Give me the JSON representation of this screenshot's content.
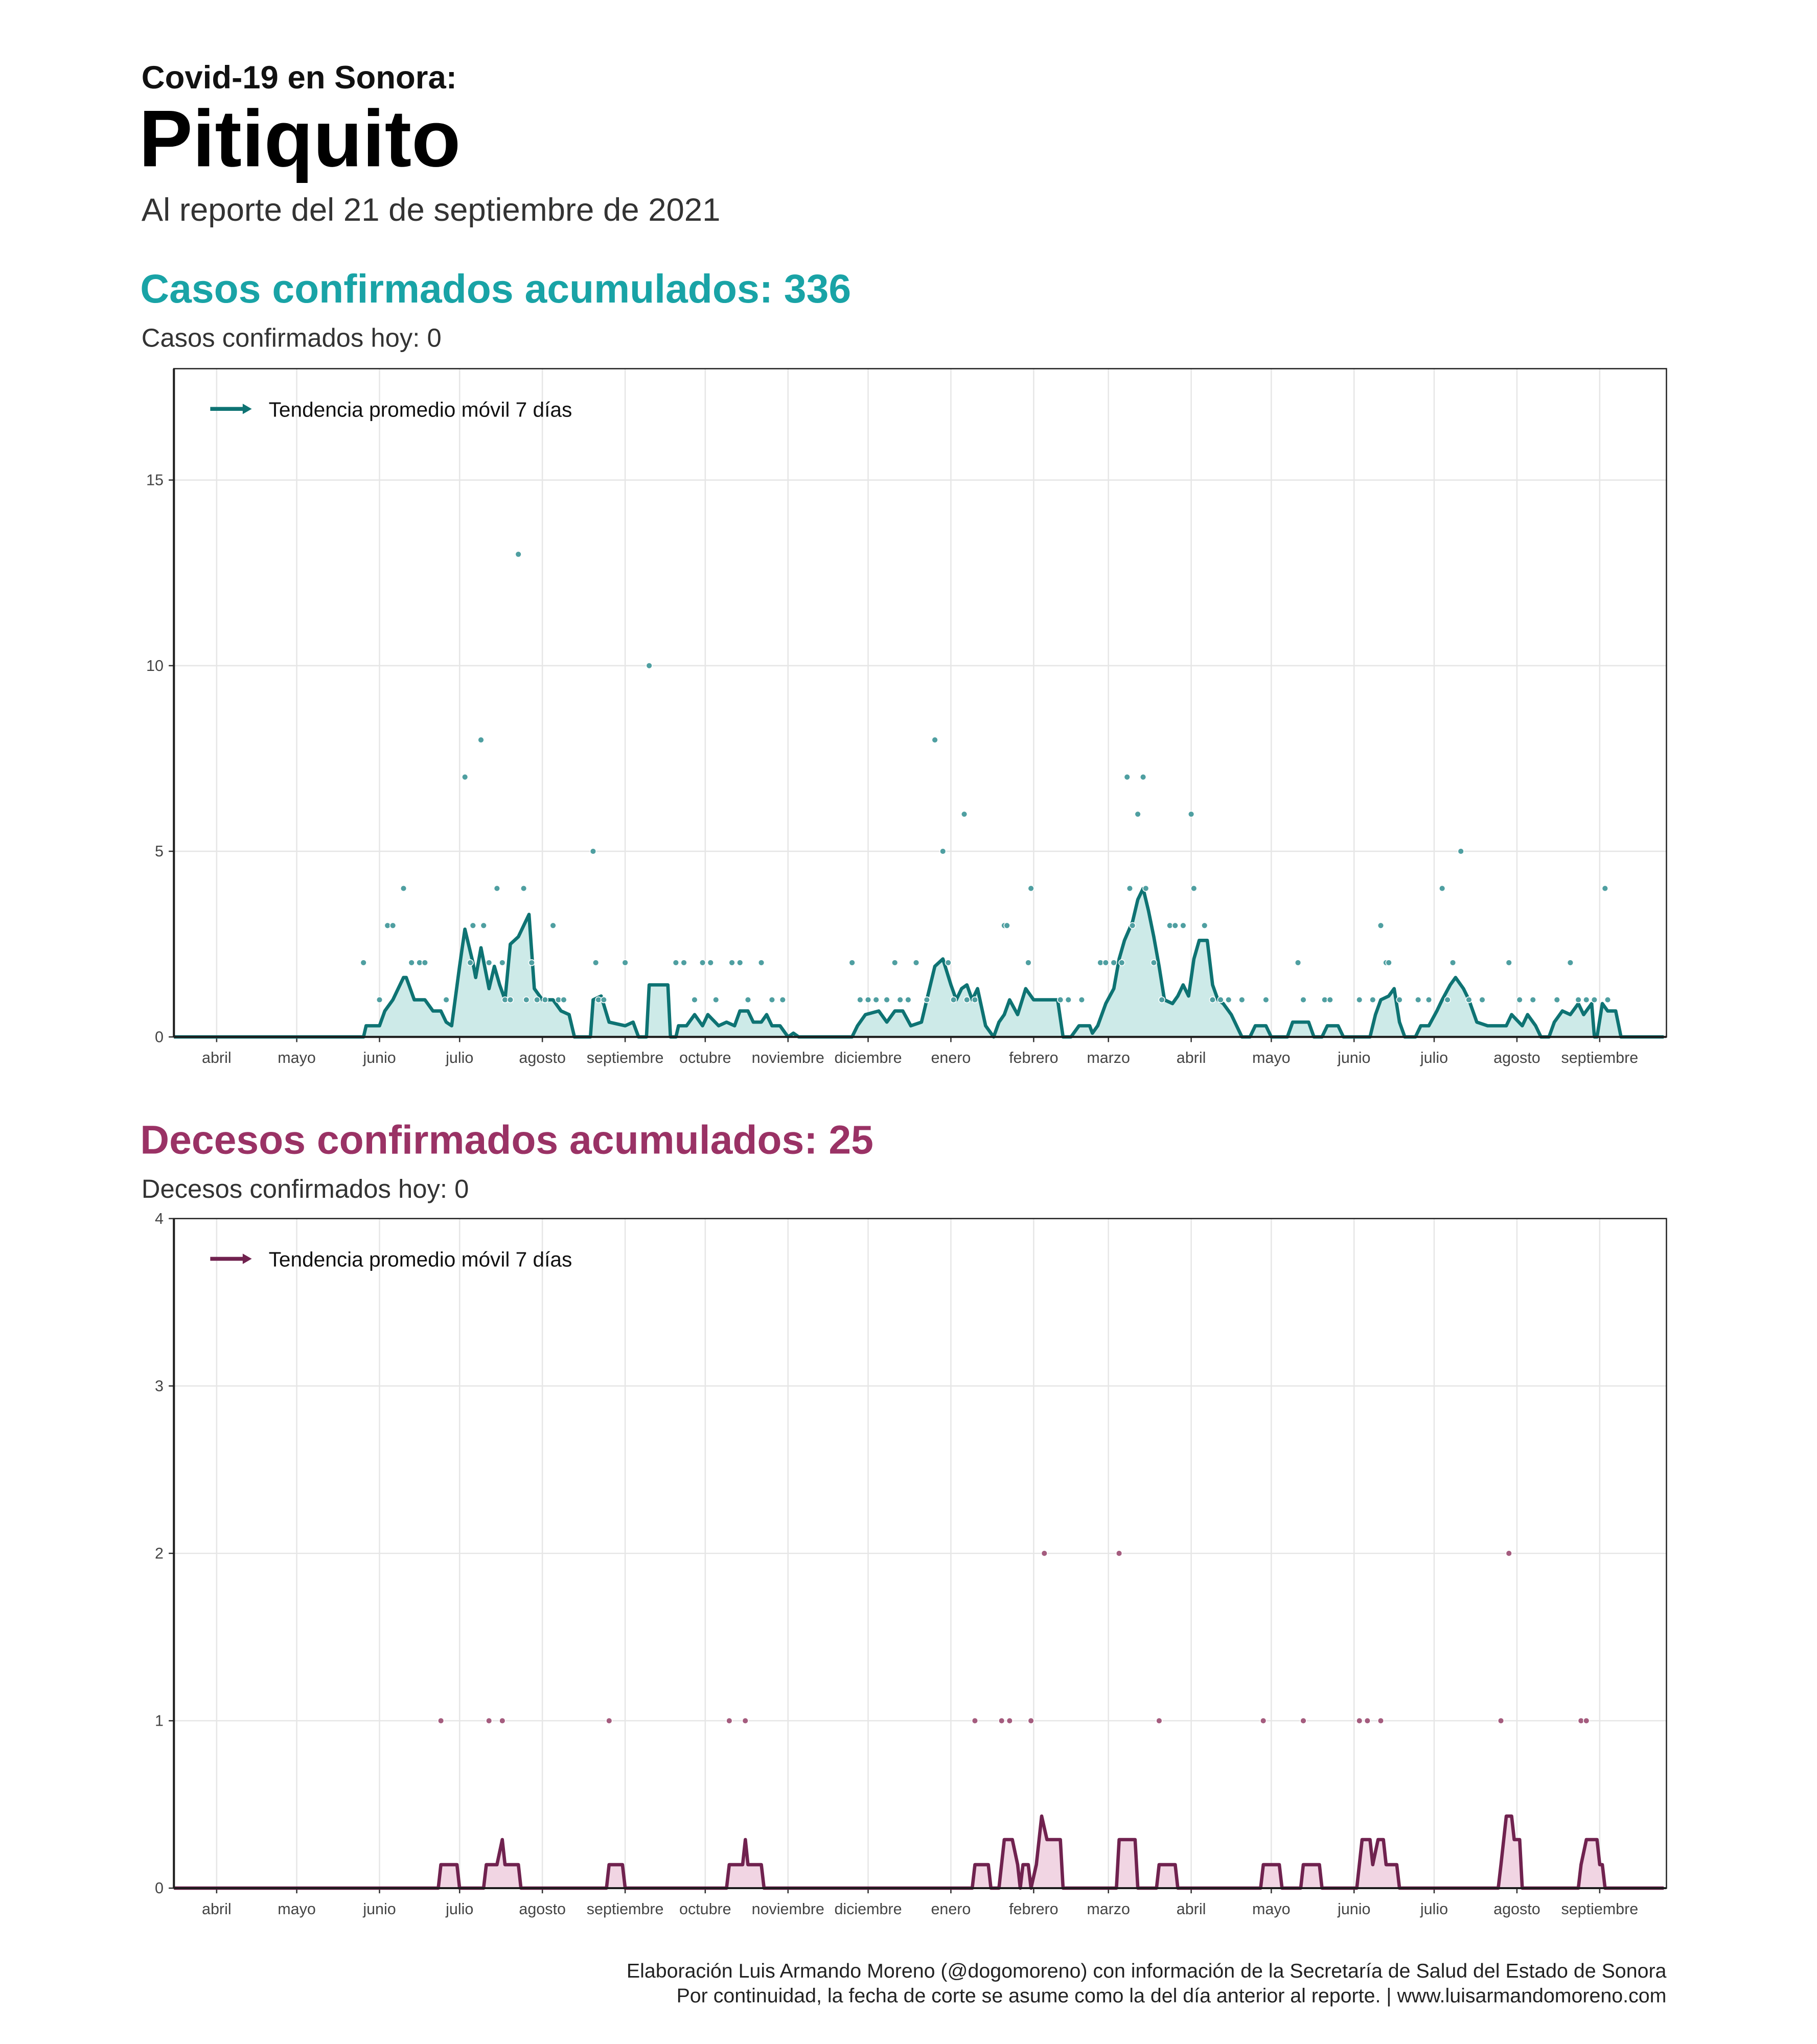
{
  "header": {
    "kicker": "Covid-19 en Sonora:",
    "title": "Pitiquito",
    "subtitle": "Al reporte del 21 de septiembre de 2021"
  },
  "footer": [
    "Elaboración Luis Armando Moreno (@dogomoreno) con información de la Secretaría de Salud del Estado de Sonora",
    "Por continuidad, la fecha de corte se asume como la del día anterior al reporte. | www.luisarmandomoreno.com"
  ],
  "chart_data": [
    {
      "type": "scatter",
      "title": "Casos confirmados acumulados: 336",
      "subtitle": "Casos confirmados hoy: 0",
      "title_color": "#19a3a6",
      "xlim": [
        -2,
        557
      ],
      "ylim": [
        0,
        18
      ],
      "yticks": [
        0,
        5,
        10,
        15
      ],
      "grid": true,
      "legend": "top-left",
      "xticks": [
        {
          "value": 14,
          "label": "abril"
        },
        {
          "value": 44,
          "label": "mayo"
        },
        {
          "value": 75,
          "label": "junio"
        },
        {
          "value": 105,
          "label": "julio"
        },
        {
          "value": 136,
          "label": "agosto"
        },
        {
          "value": 167,
          "label": "septiembre"
        },
        {
          "value": 197,
          "label": "octubre"
        },
        {
          "value": 228,
          "label": "noviembre"
        },
        {
          "value": 258,
          "label": "diciembre"
        },
        {
          "value": 289,
          "label": "enero"
        },
        {
          "value": 320,
          "label": "febrero"
        },
        {
          "value": 348,
          "label": "marzo"
        },
        {
          "value": 379,
          "label": "abril"
        },
        {
          "value": 409,
          "label": "mayo"
        },
        {
          "value": 440,
          "label": "junio"
        },
        {
          "value": 470,
          "label": "julio"
        },
        {
          "value": 501,
          "label": "agosto"
        },
        {
          "value": 532,
          "label": "septiembre"
        }
      ],
      "series": [
        {
          "name": "Tendencia promedio móvil 7 días",
          "kind": "line",
          "color": "#0e7373",
          "fill": "#cdeae8",
          "x": [
            -2,
            69,
            70,
            75,
            77,
            80,
            84,
            85,
            88,
            92,
            95,
            98,
            100,
            102,
            105,
            107,
            110,
            111,
            113,
            116,
            118,
            120,
            122,
            124,
            127,
            129,
            131,
            133,
            136,
            140,
            143,
            146,
            148,
            154,
            155,
            158,
            161,
            167,
            170,
            172,
            175,
            176,
            183,
            184,
            186,
            187,
            190,
            193,
            196,
            198,
            202,
            205,
            208,
            210,
            213,
            215,
            218,
            220,
            222,
            225,
            228,
            230,
            232,
            252,
            254,
            257,
            262,
            265,
            268,
            271,
            274,
            278,
            280,
            283,
            286,
            289,
            291,
            293,
            295,
            297,
            299,
            302,
            305,
            307,
            309,
            311,
            314,
            317,
            320,
            329,
            331,
            334,
            337,
            341,
            342,
            344,
            347,
            350,
            352,
            354,
            357,
            359,
            361,
            363,
            365,
            367,
            369,
            372,
            374,
            376,
            378,
            380,
            382,
            385,
            387,
            389,
            391,
            394,
            396,
            398,
            401,
            403,
            407,
            409,
            415,
            417,
            423,
            425,
            428,
            430,
            434,
            436,
            446,
            448,
            450,
            453,
            455,
            457,
            459,
            463,
            465,
            468,
            471,
            473,
            476,
            478,
            481,
            483,
            486,
            490,
            497,
            499,
            503,
            505,
            508,
            510,
            513,
            515,
            518,
            521,
            524,
            526,
            529,
            530,
            531,
            533,
            535,
            538,
            540,
            556
          ],
          "values": [
            0,
            0,
            0.3,
            0.3,
            0.7,
            1,
            1.6,
            1.6,
            1,
            1,
            0.7,
            0.7,
            0.4,
            0.3,
            1.9,
            2.9,
            2,
            1.6,
            2.4,
            1.3,
            1.9,
            1.4,
            1,
            2.5,
            2.7,
            3,
            3.3,
            1.3,
            1,
            1,
            0.7,
            0.6,
            0,
            0,
            1,
            1.1,
            0.4,
            0.3,
            0.4,
            0,
            0,
            1.4,
            1.4,
            0,
            0,
            0.3,
            0.3,
            0.6,
            0.3,
            0.6,
            0.3,
            0.4,
            0.3,
            0.7,
            0.7,
            0.4,
            0.4,
            0.6,
            0.3,
            0.3,
            0,
            0.1,
            0,
            0,
            0.3,
            0.6,
            0.7,
            0.4,
            0.7,
            0.7,
            0.3,
            0.4,
            1,
            1.9,
            2.1,
            1.4,
            1,
            1.3,
            1.4,
            1,
            1.3,
            0.3,
            0,
            0.4,
            0.6,
            1,
            0.6,
            1.3,
            1,
            1,
            0,
            0,
            0.3,
            0.3,
            0.1,
            0.3,
            0.9,
            1.3,
            2.1,
            2.6,
            3.1,
            3.7,
            4,
            3.4,
            2.7,
            1.9,
            1,
            0.9,
            1.1,
            1.4,
            1.1,
            2.1,
            2.6,
            2.6,
            1.4,
            1,
            0.9,
            0.6,
            0.3,
            0,
            0,
            0.3,
            0.3,
            0,
            0,
            0.4,
            0.4,
            0,
            0,
            0.3,
            0.3,
            0,
            0,
            0.6,
            1,
            1.1,
            1.3,
            0.4,
            0,
            0,
            0.3,
            0.3,
            0.7,
            1,
            1.4,
            1.6,
            1.3,
            1,
            0.4,
            0.3,
            0.3,
            0.6,
            0.3,
            0.6,
            0.3,
            0,
            0,
            0.4,
            0.7,
            0.6,
            0.9,
            0.6,
            0.9,
            0,
            0,
            0.9,
            0.7,
            0.7,
            0,
            0
          ]
        },
        {
          "kind": "points",
          "color": "#4f9fa1",
          "x": [
            69,
            75,
            78,
            80,
            84,
            87,
            90,
            92,
            100,
            107,
            109,
            110,
            113,
            114,
            116,
            119,
            121,
            122,
            124,
            127,
            129,
            130,
            132,
            134,
            137,
            140,
            142,
            144,
            155,
            156,
            157,
            159,
            167,
            176,
            186,
            189,
            193,
            196,
            199,
            201,
            207,
            210,
            213,
            218,
            222,
            226,
            252,
            255,
            258,
            261,
            265,
            268,
            270,
            273,
            276,
            280,
            283,
            286,
            288,
            290,
            294,
            295,
            298,
            309,
            310,
            318,
            319,
            330,
            333,
            338,
            345,
            347,
            350,
            353,
            355,
            356,
            357,
            359,
            361,
            362,
            365,
            368,
            371,
            373,
            376,
            379,
            380,
            384,
            387,
            390,
            393,
            398,
            407,
            419,
            421,
            429,
            431,
            442,
            447,
            450,
            452,
            453,
            457,
            464,
            468,
            473,
            475,
            477,
            480,
            483,
            488,
            498,
            502,
            507,
            516,
            521,
            524,
            527,
            530,
            534,
            535
          ],
          "values": [
            2,
            1,
            3,
            3,
            4,
            2,
            2,
            2,
            1,
            7,
            2,
            3,
            8,
            3,
            2,
            4,
            2,
            1,
            1,
            13,
            4,
            1,
            2,
            1,
            1,
            3,
            1,
            1,
            5,
            2,
            1,
            1,
            2,
            10,
            2,
            2,
            1,
            2,
            2,
            1,
            2,
            2,
            1,
            2,
            1,
            1,
            2,
            1,
            1,
            1,
            1,
            2,
            1,
            1,
            2,
            1,
            8,
            5,
            2,
            1,
            6,
            1,
            1,
            3,
            3,
            2,
            4,
            1,
            1,
            1,
            2,
            2,
            2,
            2,
            7,
            4,
            3,
            6,
            7,
            4,
            2,
            1,
            3,
            3,
            3,
            6,
            4,
            3,
            1,
            1,
            1,
            1,
            1,
            2,
            1,
            1,
            1,
            1,
            1,
            3,
            2,
            2,
            1,
            1,
            1,
            4,
            1,
            2,
            5,
            1,
            1,
            2,
            1,
            1,
            1,
            2,
            1,
            1,
            1,
            4,
            1
          ]
        }
      ]
    },
    {
      "type": "scatter",
      "title": "Decesos confirmados acumulados: 25",
      "subtitle": "Decesos confirmados hoy: 0",
      "title_color": "#9a3265",
      "xlim": [
        -2,
        557
      ],
      "ylim": [
        0,
        4
      ],
      "yticks": [
        0,
        1,
        2,
        3,
        4
      ],
      "grid": true,
      "legend": "top-left",
      "xticks": [
        {
          "value": 14,
          "label": "abril"
        },
        {
          "value": 44,
          "label": "mayo"
        },
        {
          "value": 75,
          "label": "junio"
        },
        {
          "value": 105,
          "label": "julio"
        },
        {
          "value": 136,
          "label": "agosto"
        },
        {
          "value": 167,
          "label": "septiembre"
        },
        {
          "value": 197,
          "label": "octubre"
        },
        {
          "value": 228,
          "label": "noviembre"
        },
        {
          "value": 258,
          "label": "diciembre"
        },
        {
          "value": 289,
          "label": "enero"
        },
        {
          "value": 320,
          "label": "febrero"
        },
        {
          "value": 348,
          "label": "marzo"
        },
        {
          "value": 379,
          "label": "abril"
        },
        {
          "value": 409,
          "label": "mayo"
        },
        {
          "value": 440,
          "label": "junio"
        },
        {
          "value": 470,
          "label": "julio"
        },
        {
          "value": 501,
          "label": "agosto"
        },
        {
          "value": 532,
          "label": "septiembre"
        }
      ],
      "series": [
        {
          "name": "Tendencia promedio móvil 7 días",
          "kind": "line",
          "color": "#70224f",
          "fill": "#f1d5e3",
          "x": [
            -2,
            97,
            98,
            104,
            105,
            114,
            115,
            119,
            121,
            122,
            127,
            128,
            160,
            161,
            166,
            167,
            205,
            206,
            211,
            212,
            213,
            218,
            219,
            297,
            298,
            303,
            304,
            307,
            309,
            312,
            314,
            315,
            316,
            318,
            319,
            321,
            323,
            325,
            330,
            331,
            351,
            352,
            358,
            359,
            366,
            367,
            373,
            374,
            405,
            406,
            412,
            413,
            420,
            421,
            427,
            428,
            441,
            443,
            446,
            447,
            449,
            451,
            452,
            456,
            457,
            494,
            495,
            497,
            499,
            500,
            502,
            503,
            524,
            525,
            527,
            531,
            532,
            533,
            534,
            556
          ],
          "values": [
            0,
            0,
            0.14,
            0.14,
            0,
            0,
            0.14,
            0.14,
            0.29,
            0.14,
            0.14,
            0,
            0,
            0.14,
            0.14,
            0,
            0,
            0.14,
            0.14,
            0.29,
            0.14,
            0.14,
            0,
            0,
            0.14,
            0.14,
            0,
            0,
            0.29,
            0.29,
            0.14,
            0,
            0.14,
            0.14,
            0,
            0.14,
            0.43,
            0.29,
            0.29,
            0,
            0,
            0.29,
            0.29,
            0,
            0,
            0.14,
            0.14,
            0,
            0,
            0.14,
            0.14,
            0,
            0,
            0.14,
            0.14,
            0,
            0,
            0.29,
            0.29,
            0.14,
            0.29,
            0.29,
            0.14,
            0.14,
            0,
            0,
            0.14,
            0.43,
            0.43,
            0.29,
            0.29,
            0,
            0,
            0.14,
            0.29,
            0.29,
            0.14,
            0.14,
            0,
            0
          ]
        },
        {
          "kind": "points",
          "color": "#a45c7e",
          "x": [
            98,
            116,
            121,
            161,
            206,
            212,
            298,
            308,
            311,
            319,
            324,
            352,
            367,
            406,
            421,
            442,
            445,
            450,
            495,
            498,
            525,
            527
          ],
          "values": [
            1,
            1,
            1,
            1,
            1,
            1,
            1,
            1,
            1,
            1,
            2,
            2,
            1,
            1,
            1,
            1,
            1,
            1,
            1,
            2,
            1,
            1
          ]
        }
      ]
    }
  ]
}
